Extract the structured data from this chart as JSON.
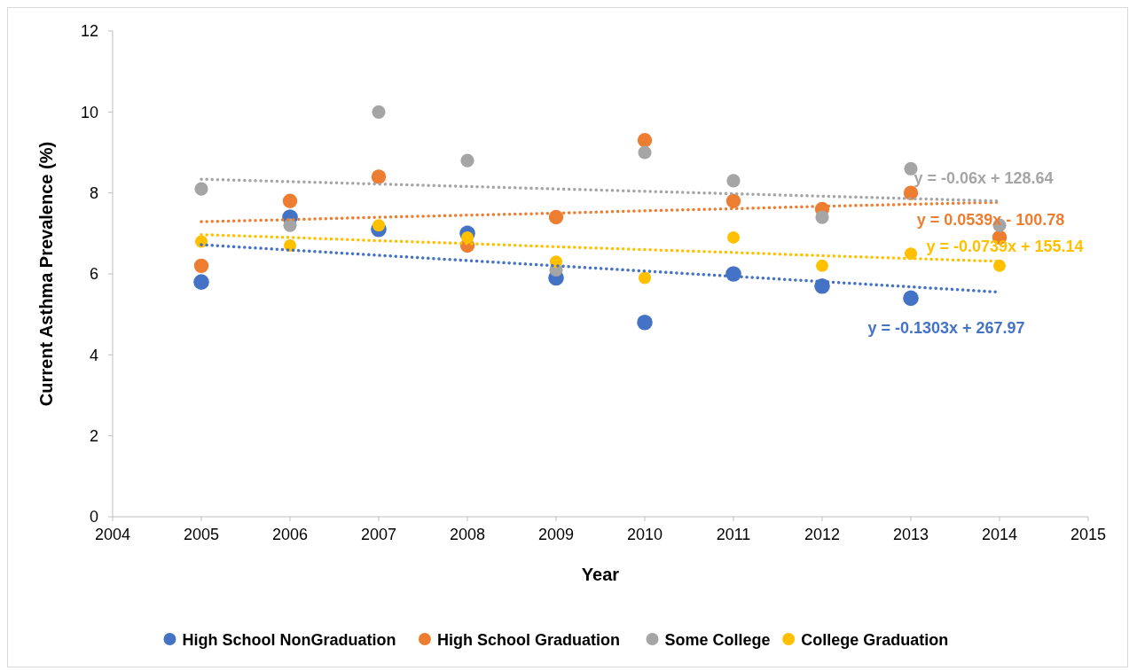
{
  "chart_data": {
    "type": "scatter",
    "xlabel": "Year",
    "ylabel": "Current Asthma Prevalence (%)",
    "x": [
      2005,
      2006,
      2007,
      2008,
      2009,
      2010,
      2011,
      2012,
      2013,
      2014
    ],
    "xlim": [
      2004,
      2015
    ],
    "xticks": [
      2004,
      2005,
      2006,
      2007,
      2008,
      2009,
      2010,
      2011,
      2012,
      2013,
      2014,
      2015
    ],
    "ylim": [
      0,
      12
    ],
    "yticks": [
      0,
      2,
      4,
      6,
      8,
      10,
      12
    ],
    "grid": false,
    "legend": "bottom",
    "marker": "circle",
    "series": [
      {
        "name": "High School NonGraduation",
        "color": "#4472c4",
        "values": [
          5.8,
          7.4,
          7.1,
          7.0,
          5.9,
          4.8,
          6.0,
          5.7,
          5.4,
          null
        ]
      },
      {
        "name": "High School Graduation",
        "color": "#ed7d31",
        "values": [
          6.2,
          7.8,
          8.4,
          6.7,
          7.4,
          9.3,
          7.8,
          7.6,
          8.0,
          6.9
        ]
      },
      {
        "name": "Some College",
        "color": "#a5a5a5",
        "values": [
          8.1,
          7.2,
          10.0,
          8.8,
          6.1,
          9.0,
          8.3,
          7.4,
          8.6,
          7.2
        ]
      },
      {
        "name": "College Graduation",
        "color": "#ffc000",
        "values": [
          6.8,
          6.7,
          7.2,
          6.9,
          6.3,
          5.9,
          6.9,
          6.2,
          6.5,
          6.2
        ]
      },
      {
        "type": "line",
        "line_style": "dotted",
        "marker": "none",
        "color": "#4472c4",
        "values": [
          6.72,
          6.59,
          6.46,
          6.33,
          6.2,
          6.07,
          5.94,
          5.81,
          5.68,
          5.55
        ]
      },
      {
        "type": "line",
        "line_style": "dotted",
        "marker": "none",
        "color": "#ed7d31",
        "values": [
          7.29,
          7.34,
          7.4,
          7.45,
          7.5,
          7.56,
          7.61,
          7.67,
          7.72,
          7.77
        ]
      },
      {
        "type": "line",
        "line_style": "dotted",
        "marker": "none",
        "color": "#a5a5a5",
        "values": [
          8.34,
          8.28,
          8.22,
          8.16,
          8.1,
          8.04,
          7.98,
          7.92,
          7.86,
          7.8
        ]
      },
      {
        "type": "line",
        "line_style": "dotted",
        "marker": "none",
        "color": "#ffc000",
        "values": [
          6.97,
          6.9,
          6.82,
          6.75,
          6.67,
          6.6,
          6.53,
          6.45,
          6.38,
          6.31
        ]
      }
    ],
    "annotations": [
      "y = -0.1303x + 267.97",
      "y = 0.0539x - 100.78",
      "y = -0.06x + 128.64",
      "y = -0.0739x + 155.14"
    ]
  }
}
